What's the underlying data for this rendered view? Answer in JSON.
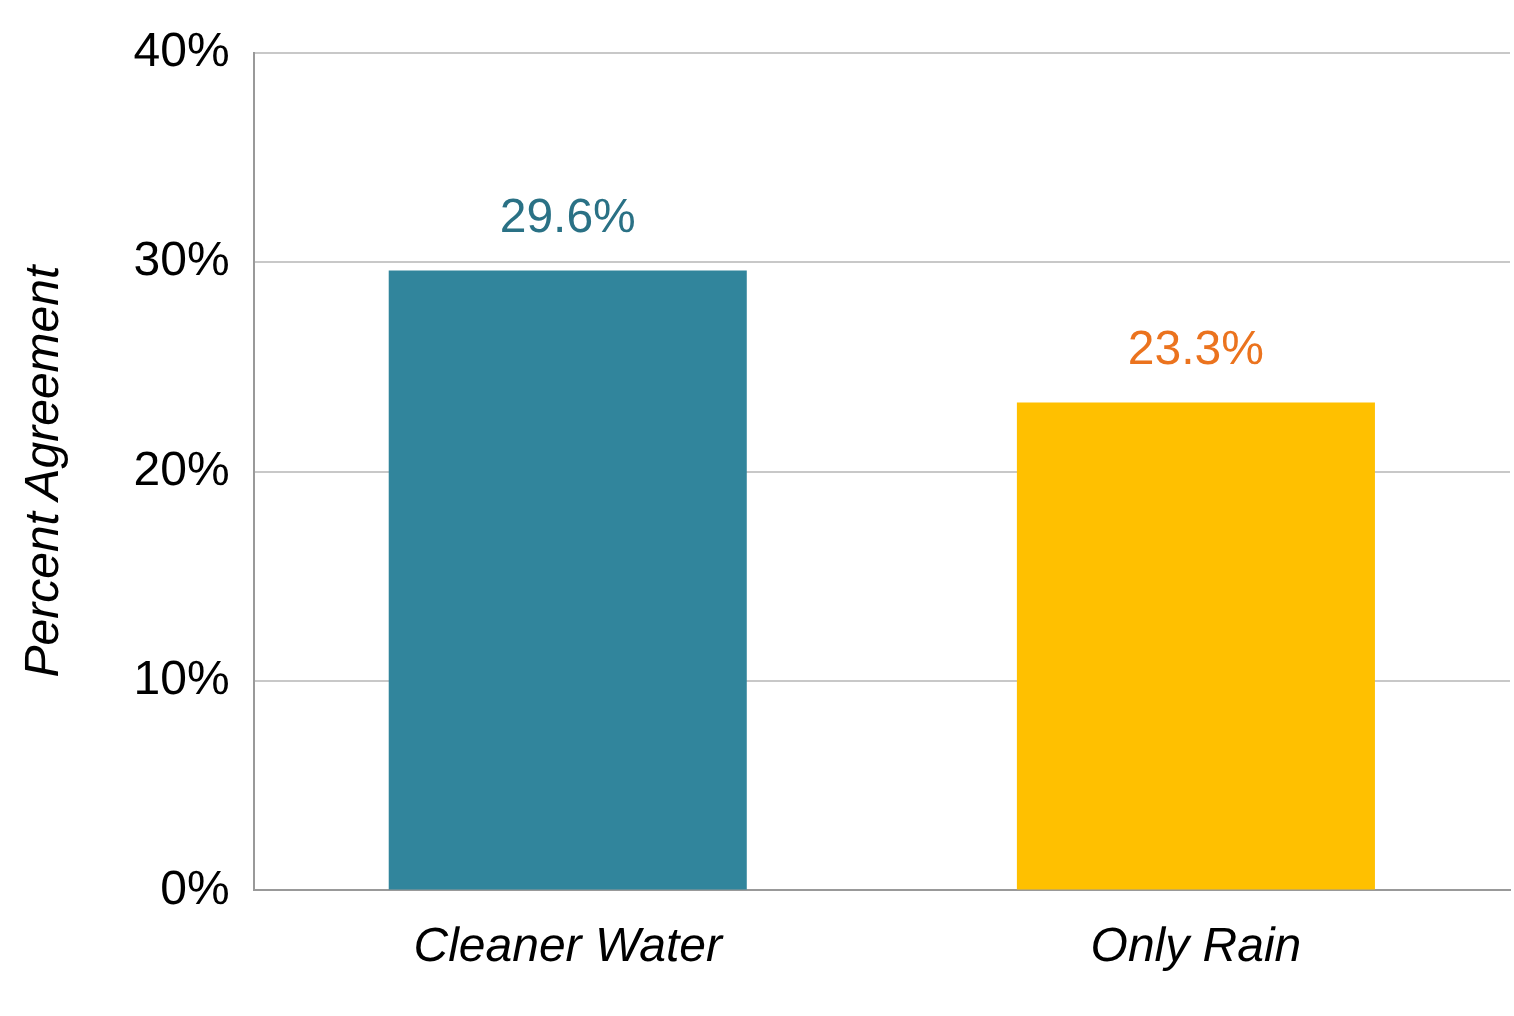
{
  "chart_data": {
    "type": "bar",
    "ylabel": "Percent Agreement",
    "categories": [
      "Cleaner Water",
      "Only Rain"
    ],
    "values": [
      29.6,
      23.3
    ],
    "colors": [
      "#31859c",
      "#ffc000"
    ],
    "value_labels": [
      "29.6%",
      "23.3%"
    ],
    "ylim": [
      0,
      40
    ],
    "yticks": [
      {
        "value": 0,
        "label": "0%"
      },
      {
        "value": 10,
        "label": "10%"
      },
      {
        "value": 20,
        "label": "20%"
      },
      {
        "value": 30,
        "label": "30%"
      },
      {
        "value": 40,
        "label": "40%"
      }
    ],
    "grid": "y",
    "legend": false
  }
}
